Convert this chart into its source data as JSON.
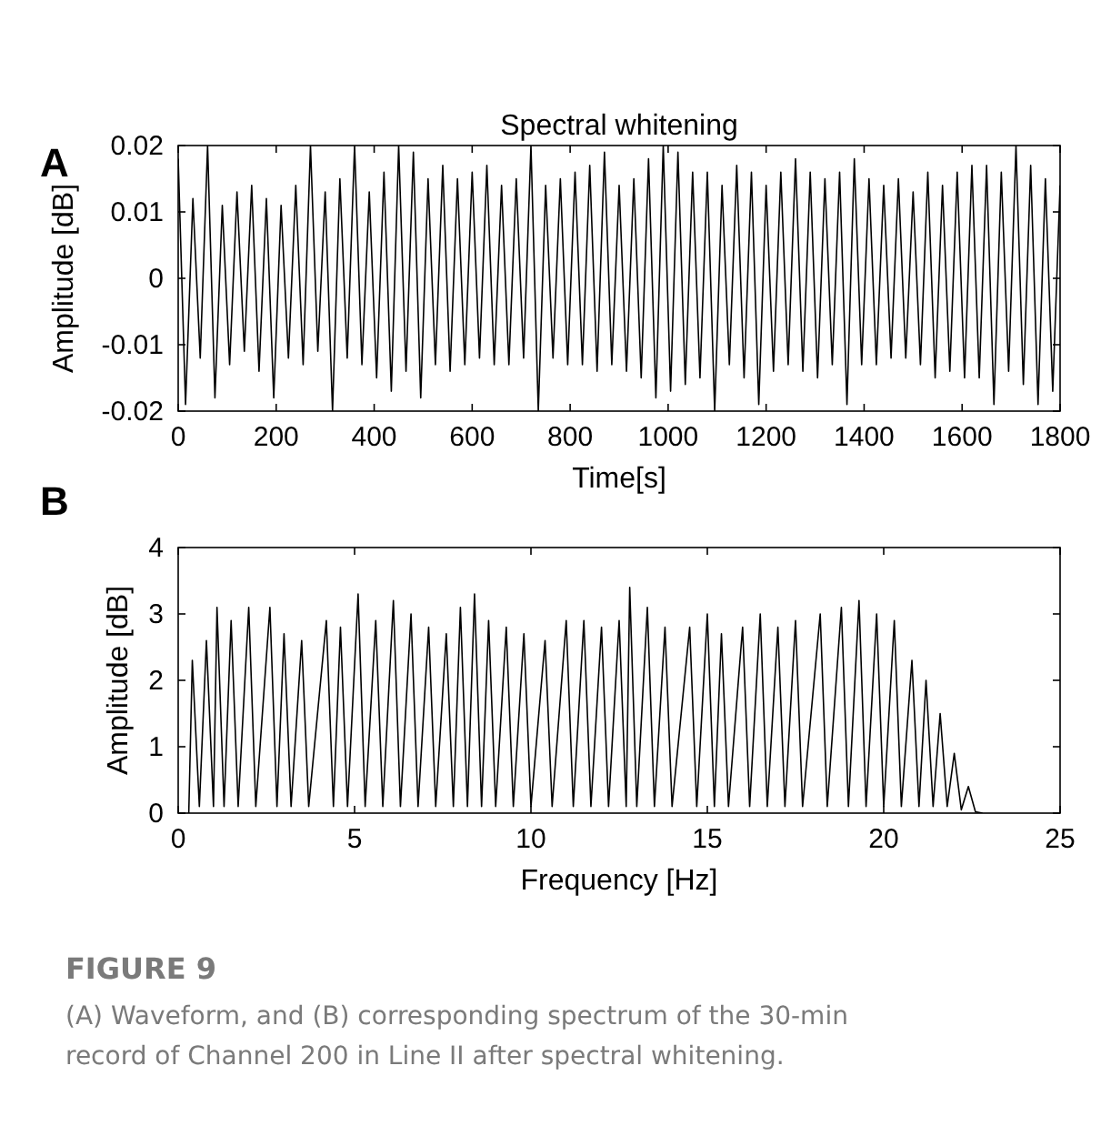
{
  "chart_data": [
    {
      "type": "line",
      "title": "Spectral whitening",
      "xlabel": "Time[s]",
      "ylabel": "Amplitude [dB]",
      "annotations": [
        "A"
      ],
      "color": "#000000",
      "xlim": [
        0,
        1800
      ],
      "xticks": [
        0,
        200,
        400,
        600,
        800,
        1000,
        1200,
        1400,
        1600,
        1800
      ],
      "ylim": [
        -0.02,
        0.02
      ],
      "yticks": [
        -0.02,
        -0.01,
        0,
        0.01,
        0.02
      ],
      "x": [
        0,
        15,
        30,
        45,
        60,
        75,
        90,
        105,
        120,
        135,
        150,
        165,
        180,
        195,
        210,
        225,
        240,
        255,
        270,
        285,
        300,
        315,
        330,
        345,
        360,
        375,
        390,
        405,
        420,
        435,
        450,
        465,
        480,
        495,
        510,
        525,
        540,
        555,
        570,
        585,
        600,
        615,
        630,
        645,
        660,
        675,
        690,
        705,
        720,
        735,
        750,
        765,
        780,
        795,
        810,
        825,
        840,
        855,
        870,
        885,
        900,
        915,
        930,
        945,
        960,
        975,
        990,
        1005,
        1020,
        1035,
        1050,
        1065,
        1080,
        1095,
        1110,
        1125,
        1140,
        1155,
        1170,
        1185,
        1200,
        1215,
        1230,
        1245,
        1260,
        1275,
        1290,
        1305,
        1320,
        1335,
        1350,
        1365,
        1380,
        1395,
        1410,
        1425,
        1440,
        1455,
        1470,
        1485,
        1500,
        1515,
        1530,
        1545,
        1560,
        1575,
        1590,
        1605,
        1620,
        1635,
        1650,
        1665,
        1680,
        1695,
        1710,
        1725,
        1740,
        1755,
        1770,
        1785,
        1800
      ],
      "values": [
        0.018,
        -0.019,
        0.012,
        -0.012,
        0.02,
        -0.018,
        0.011,
        -0.013,
        0.013,
        -0.011,
        0.014,
        -0.014,
        0.012,
        -0.018,
        0.011,
        -0.012,
        0.014,
        -0.013,
        0.02,
        -0.011,
        0.013,
        -0.02,
        0.015,
        -0.012,
        0.02,
        -0.013,
        0.013,
        -0.015,
        0.016,
        -0.017,
        0.02,
        -0.014,
        0.019,
        -0.018,
        0.015,
        -0.013,
        0.017,
        -0.014,
        0.015,
        -0.013,
        0.016,
        -0.012,
        0.017,
        -0.013,
        0.014,
        -0.013,
        0.015,
        -0.012,
        0.02,
        -0.02,
        0.014,
        -0.012,
        0.015,
        -0.013,
        0.016,
        -0.013,
        0.017,
        -0.014,
        0.019,
        -0.013,
        0.014,
        -0.014,
        0.015,
        -0.015,
        0.018,
        -0.018,
        0.02,
        -0.017,
        0.019,
        -0.016,
        0.016,
        -0.015,
        0.016,
        -0.02,
        0.014,
        -0.013,
        0.017,
        -0.015,
        0.016,
        -0.019,
        0.014,
        -0.014,
        0.016,
        -0.013,
        0.018,
        -0.014,
        0.016,
        -0.015,
        0.015,
        -0.013,
        0.016,
        -0.019,
        0.018,
        -0.013,
        0.015,
        -0.013,
        0.014,
        -0.012,
        0.015,
        -0.012,
        0.013,
        -0.013,
        0.016,
        -0.015,
        0.014,
        -0.014,
        0.016,
        -0.015,
        0.017,
        -0.015,
        0.017,
        -0.019,
        0.016,
        -0.014,
        0.02,
        -0.016,
        0.017,
        -0.019,
        0.015,
        -0.017,
        0.014
      ]
    },
    {
      "type": "line",
      "xlabel": "Frequency [Hz]",
      "ylabel": "Amplitude [dB]",
      "annotations": [
        "B",
        "FIGURE 9",
        "(A) Waveform, and (B) corresponding spectrum of the 30-min record of Channel 200 in Line II after spectral whitening."
      ],
      "color": "#000000",
      "xlim": [
        0,
        25
      ],
      "xticks": [
        0,
        5,
        10,
        15,
        20,
        25
      ],
      "ylim": [
        0,
        4
      ],
      "yticks": [
        0,
        1,
        2,
        3,
        4
      ],
      "x": [
        0.3,
        0.4,
        0.6,
        0.8,
        1.0,
        1.1,
        1.3,
        1.5,
        1.7,
        2.0,
        2.2,
        2.6,
        2.8,
        3.0,
        3.2,
        3.5,
        3.7,
        4.2,
        4.4,
        4.6,
        4.8,
        5.1,
        5.3,
        5.6,
        5.8,
        6.1,
        6.3,
        6.6,
        6.8,
        7.1,
        7.3,
        7.6,
        7.8,
        8.0,
        8.2,
        8.4,
        8.6,
        8.8,
        9.0,
        9.3,
        9.5,
        9.8,
        10.0,
        10.4,
        10.6,
        11.0,
        11.2,
        11.5,
        11.7,
        12.0,
        12.2,
        12.5,
        12.7,
        12.8,
        13.0,
        13.3,
        13.5,
        13.8,
        14.0,
        14.5,
        14.7,
        15.0,
        15.2,
        15.4,
        15.6,
        16.0,
        16.2,
        16.5,
        16.7,
        17.0,
        17.2,
        17.5,
        17.7,
        18.2,
        18.4,
        18.8,
        19.0,
        19.3,
        19.5,
        19.8,
        20.0,
        20.3,
        20.5,
        20.8,
        21.0,
        21.2,
        21.4,
        21.6,
        21.8,
        22.0,
        22.2,
        22.4,
        22.6,
        22.8
      ],
      "values": [
        0,
        2.3,
        0.1,
        2.6,
        0.1,
        3.1,
        0.1,
        2.9,
        0.1,
        3.1,
        0.1,
        3.1,
        0.1,
        2.7,
        0.1,
        2.6,
        0.1,
        2.9,
        0.1,
        2.8,
        0.1,
        3.3,
        0.1,
        2.9,
        0.1,
        3.2,
        0.1,
        3.0,
        0.1,
        2.8,
        0.1,
        2.7,
        0.1,
        3.1,
        0.1,
        3.3,
        0.1,
        2.9,
        0.1,
        2.8,
        0.1,
        2.7,
        0.1,
        2.6,
        0.1,
        2.9,
        0.1,
        2.9,
        0.1,
        2.8,
        0.1,
        2.9,
        0.1,
        3.4,
        0.1,
        3.1,
        0.1,
        2.8,
        0.1,
        2.8,
        0.1,
        3.0,
        0.1,
        2.7,
        0.1,
        2.8,
        0.1,
        3.0,
        0.1,
        2.8,
        0.1,
        2.9,
        0.1,
        3.0,
        0.1,
        3.1,
        0.1,
        3.2,
        0.1,
        3.0,
        0.1,
        2.9,
        0.1,
        2.3,
        0.1,
        2.0,
        0.1,
        1.5,
        0.1,
        0.9,
        0.05,
        0.4,
        0.02,
        0
      ]
    }
  ]
}
